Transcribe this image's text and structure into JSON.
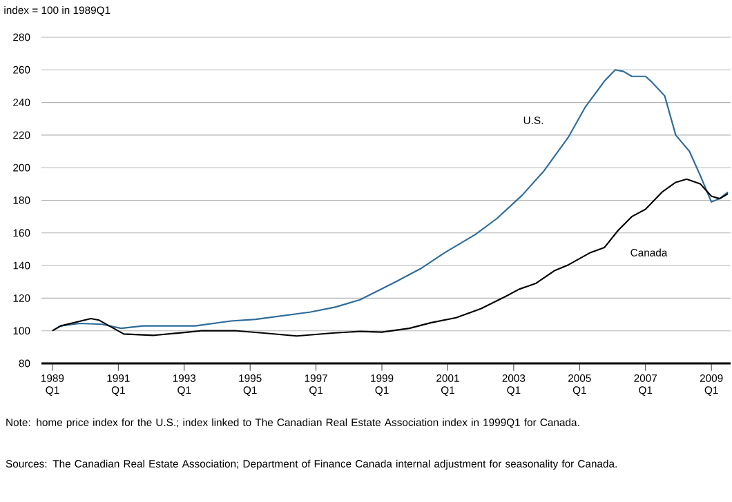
{
  "chart_data": {
    "type": "line",
    "ylabel": "index = 100 in 1989Q1",
    "xlim": [
      "1988-09",
      "2009-08"
    ],
    "ylim": [
      80,
      280
    ],
    "xticks": [
      {
        "value": "1989-01",
        "label": "1989 Q1"
      },
      {
        "value": "1991-01",
        "label": "1991 Q1"
      },
      {
        "value": "1993-01",
        "label": "1993 Q1"
      },
      {
        "value": "1995-01",
        "label": "1995 Q1"
      },
      {
        "value": "1997-01",
        "label": "1997 Q1"
      },
      {
        "value": "1999-01",
        "label": "1999 Q1"
      },
      {
        "value": "2001-01",
        "label": "2001 Q1"
      },
      {
        "value": "2003-01",
        "label": "2003 Q1"
      },
      {
        "value": "2005-01",
        "label": "2005 Q1"
      },
      {
        "value": "2007-01",
        "label": "2007 Q1"
      },
      {
        "value": "2009-01",
        "label": "2009 Q1"
      }
    ],
    "yticks": [
      80,
      100,
      120,
      140,
      160,
      180,
      200,
      220,
      240,
      260,
      280
    ],
    "grid": "y",
    "legend": false,
    "marker": "none",
    "line_style": "solid",
    "series": [
      {
        "name": "U.S.",
        "color": "#2b6b9c",
        "x": [
          "1989-01",
          "1989-04",
          "1989-11",
          "1990-07",
          "1991-02",
          "1991-10",
          "1993-05",
          "1994-06",
          "1995-03",
          "1996-11",
          "1997-08",
          "1998-05",
          "1999-06",
          "2000-03",
          "2000-12",
          "2001-11",
          "2002-07",
          "2003-04",
          "2003-12",
          "2004-09",
          "2005-03",
          "2005-10",
          "2006-02",
          "2006-05",
          "2006-08",
          "2007-01",
          "2007-03",
          "2007-08",
          "2007-12",
          "2008-05",
          "2008-09",
          "2009-01",
          "2009-04",
          "2009-07"
        ],
        "values": [
          100,
          103,
          104.5,
          104,
          101.5,
          103,
          103,
          106,
          107,
          111.5,
          114.5,
          119,
          130,
          138,
          148,
          159,
          169,
          183,
          198,
          219,
          237,
          253,
          260,
          259,
          256,
          256,
          253,
          244,
          220,
          210,
          195,
          179,
          181,
          185
        ]
      },
      {
        "name": "Canada",
        "color": "#000000",
        "x": [
          "1989-01",
          "1989-04",
          "1990-03",
          "1990-06",
          "1991-03",
          "1992-02",
          "1993-03",
          "1993-07",
          "1994-08",
          "1995-06",
          "1996-06",
          "1997-07",
          "1998-05",
          "1999-01",
          "1999-11",
          "2000-07",
          "2001-04",
          "2002-01",
          "2002-10",
          "2003-03",
          "2003-09",
          "2004-04",
          "2004-09",
          "2005-05",
          "2005-10",
          "2006-03",
          "2006-08",
          "2007-01",
          "2007-07",
          "2007-12",
          "2008-04",
          "2008-09",
          "2009-01",
          "2009-04",
          "2009-07"
        ],
        "values": [
          100,
          103,
          107.5,
          106.5,
          98,
          97.2,
          99.3,
          100,
          100,
          98.6,
          96.8,
          98.6,
          99.6,
          99.2,
          101.5,
          105,
          108,
          113.5,
          121,
          125.5,
          129,
          137,
          140.5,
          148,
          151,
          161.5,
          170,
          174.5,
          185,
          191,
          193,
          190,
          182.5,
          181,
          184
        ]
      }
    ],
    "annotations": [
      "Note: home price index for the U.S.; index linked to The Canadian Real Estate Association index in 1999Q1 for Canada.",
      "Sources: The Canadian Real Estate Association; Department of Finance Canada internal adjustment for seasonality for Canada."
    ]
  }
}
